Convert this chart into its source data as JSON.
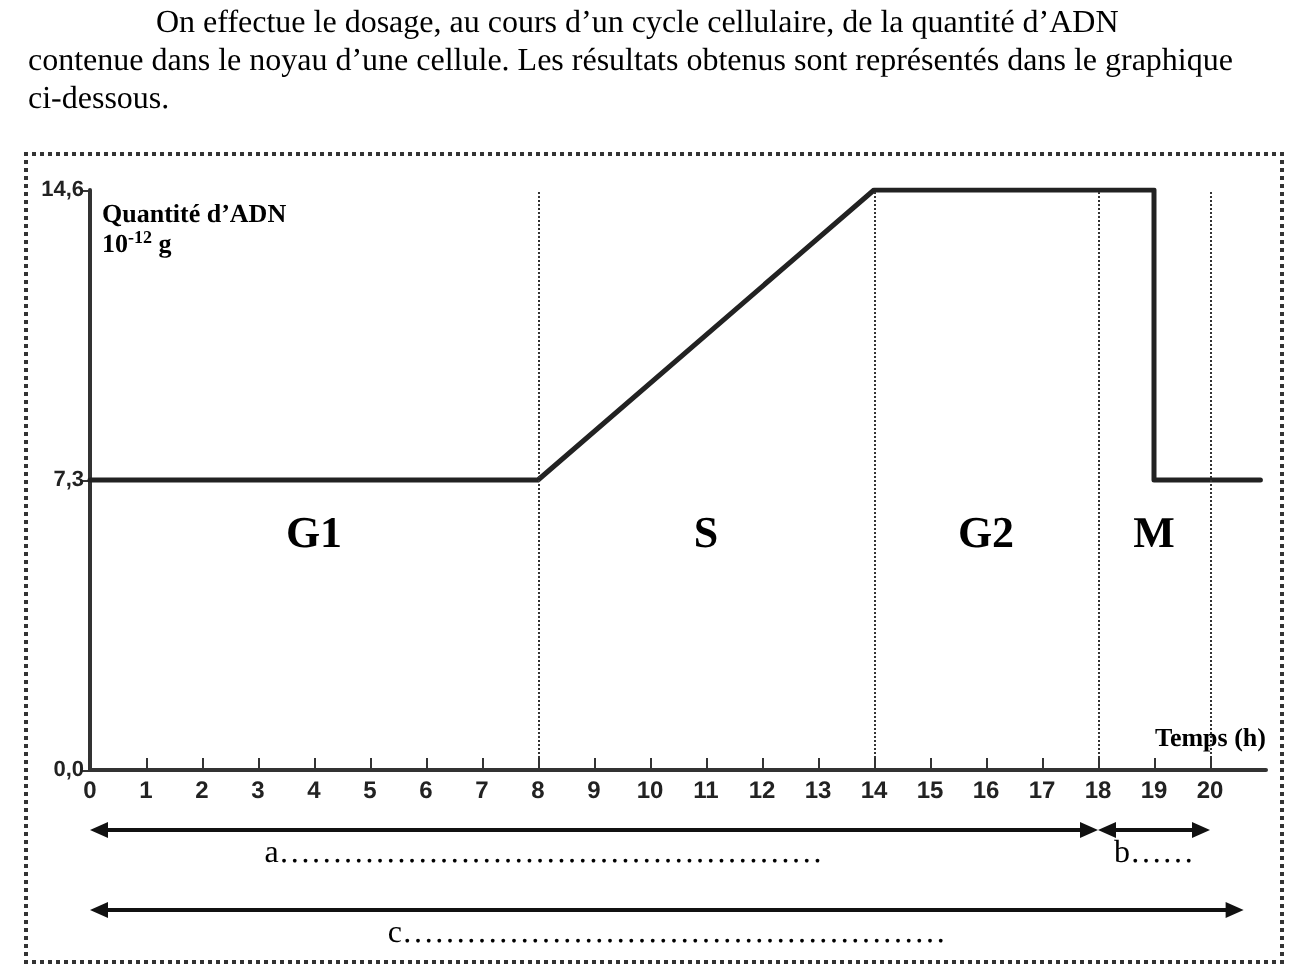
{
  "chart_data": {
    "type": "line",
    "title": "On effectue le dosage, au cours d’un cycle cellulaire, de la quantité d’ADN contenue dans le noyau d’une cellule. Les résultats obtenus sont représentés dans le graphique ci-dessous.",
    "ylabel": "Quantité d’ADN\n10$^{-12}$ g",
    "xlabel": "Temps (h)",
    "x": [
      0,
      8,
      14,
      19,
      19,
      20.9
    ],
    "series": [
      {
        "color": "#222222",
        "values": [
          7.3,
          7.3,
          14.6,
          14.6,
          7.3,
          7.3
        ]
      }
    ],
    "xlim": [
      0,
      21
    ],
    "xticks": [
      0,
      1,
      2,
      3,
      4,
      5,
      6,
      7,
      8,
      9,
      10,
      11,
      12,
      13,
      14,
      15,
      16,
      17,
      18,
      19,
      20
    ],
    "ylim": [
      0,
      14.6
    ],
    "yticks": [
      {
        "value": 0,
        "label": "0,0"
      },
      {
        "value": 7.3,
        "label": "7,3"
      },
      {
        "value": 14.6,
        "label": "14,6"
      }
    ],
    "ref_lines": [
      {
        "axis": "x",
        "value": 8,
        "color": "#333333",
        "line_style": "dotted"
      },
      {
        "axis": "x",
        "value": 14,
        "color": "#333333",
        "line_style": "dotted"
      },
      {
        "axis": "x",
        "value": 18,
        "color": "#333333",
        "line_style": "dotted"
      },
      {
        "axis": "x",
        "value": 20,
        "color": "#333333",
        "line_style": "dotted"
      }
    ],
    "annotations": [
      "G1",
      "S",
      "G2",
      "M",
      "a……………………………………………",
      "b……",
      "c……………………………………………"
    ],
    "marker": "none",
    "line_style": "solid",
    "grid": false
  }
}
